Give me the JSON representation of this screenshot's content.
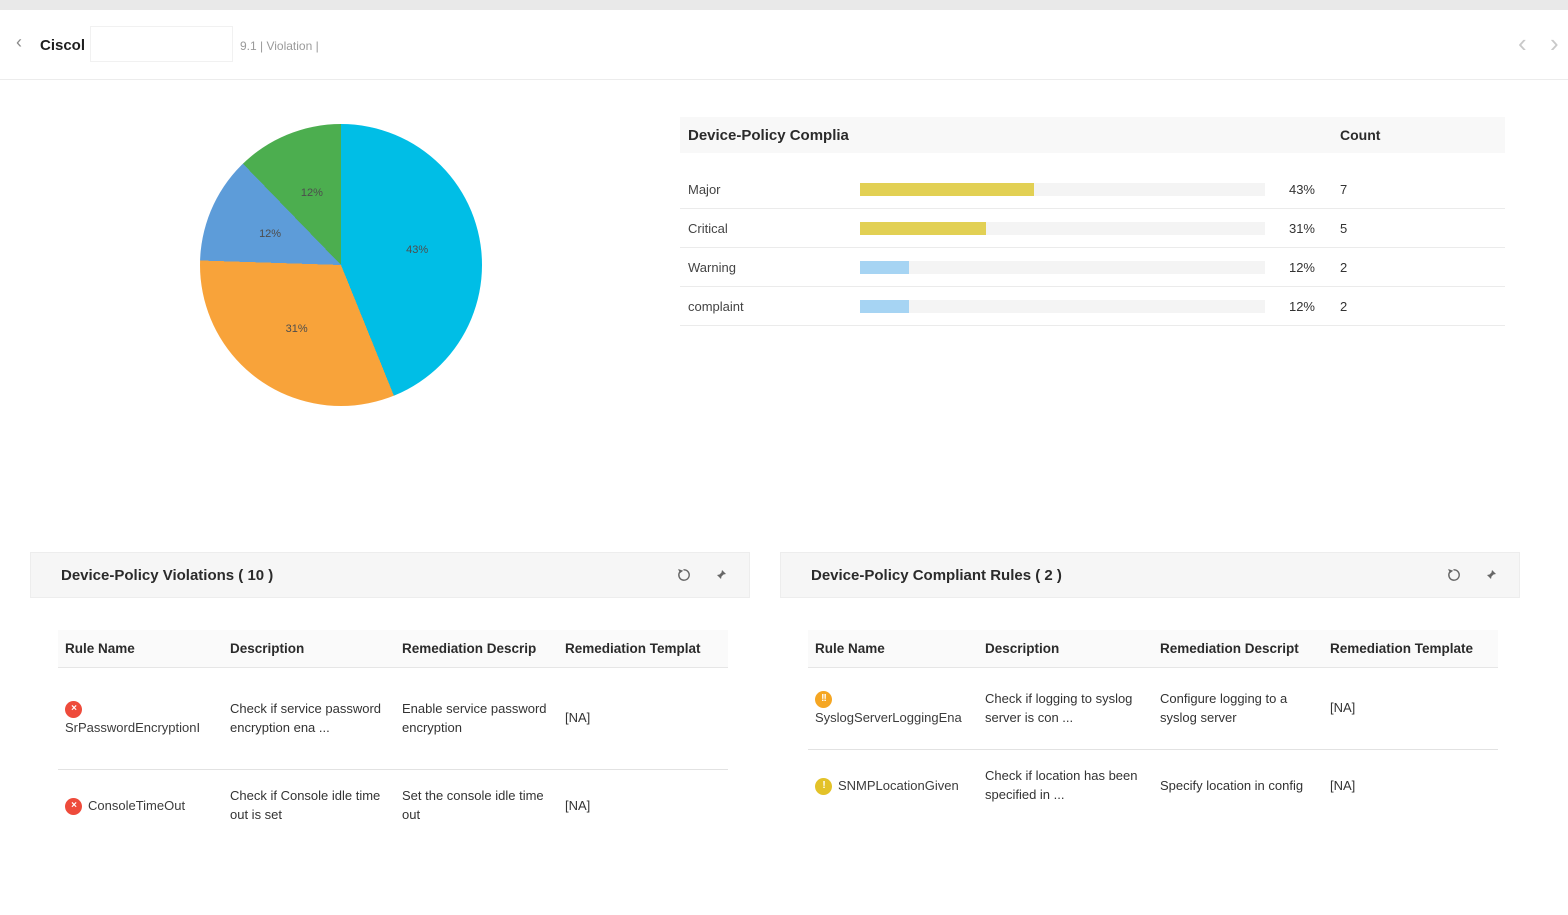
{
  "header": {
    "back_icon": "‹",
    "title": "Ciscol",
    "subtitle": "9.1 | Violation |",
    "nav_prev": "‹",
    "nav_next": "›"
  },
  "chart_data": {
    "type": "pie",
    "title": "",
    "legend_position": "none",
    "label_format": "percent",
    "slices": [
      {
        "label": "Major",
        "percent": 43,
        "count": 7,
        "color": "#00bee6"
      },
      {
        "label": "Critical",
        "percent": 31,
        "count": 5,
        "color": "#f8a33a"
      },
      {
        "label": "Warning",
        "percent": 12,
        "count": 2,
        "color": "#5d9cd9"
      },
      {
        "label": "complaint",
        "percent": 12,
        "count": 2,
        "color": "#4cae4f"
      }
    ]
  },
  "compliance_table": {
    "title": "Device-Policy Complia",
    "count_header": "Count",
    "rows": [
      {
        "label": "Major",
        "value": 43,
        "percent": "43%",
        "count": "7",
        "bar_color": "#e2d054"
      },
      {
        "label": "Critical",
        "value": 31,
        "percent": "31%",
        "count": "5",
        "bar_color": "#e2d054"
      },
      {
        "label": "Warning",
        "value": 12,
        "percent": "12%",
        "count": "2",
        "bar_color": "#a6d4f3"
      },
      {
        "label": "complaint",
        "value": 12,
        "percent": "12%",
        "count": "2",
        "bar_color": "#a6d4f3"
      }
    ]
  },
  "violations_panel": {
    "title": "Device-Policy Violations ( 10 )",
    "columns": [
      "Rule Name",
      "Description",
      "Remediation Descrip",
      "Remediation Templat"
    ],
    "rows": [
      {
        "severity": "error",
        "name": "SrPasswordEncryptionI",
        "description": "Check if service password encryption ena ...",
        "remediation": "Enable service password encryption",
        "template": "[NA]"
      },
      {
        "severity": "error",
        "name": "ConsoleTimeOut",
        "description": "Check if Console idle time out is set",
        "remediation": "Set the console idle time out",
        "template": "[NA]"
      }
    ]
  },
  "compliant_panel": {
    "title": "Device-Policy Compliant Rules ( 2 )",
    "columns": [
      "Rule Name",
      "Description",
      "Remediation Descript",
      "Remediation Template"
    ],
    "rows": [
      {
        "severity": "major",
        "name": "SyslogServerLoggingEna",
        "description": "Check if logging to syslog server is con ...",
        "remediation": "Configure logging to a syslog server",
        "template": "[NA]"
      },
      {
        "severity": "warning",
        "name": "SNMPLocationGiven",
        "description": "Check if location has been specified in ...",
        "remediation": "Specify location in config",
        "template": "[NA]"
      }
    ]
  },
  "severity_icons": {
    "error": {
      "glyph": "×",
      "color": "#ee4b3b"
    },
    "major": {
      "glyph": "!!",
      "color": "#f5a623"
    },
    "warning": {
      "glyph": "!",
      "color": "#e3c229"
    }
  }
}
